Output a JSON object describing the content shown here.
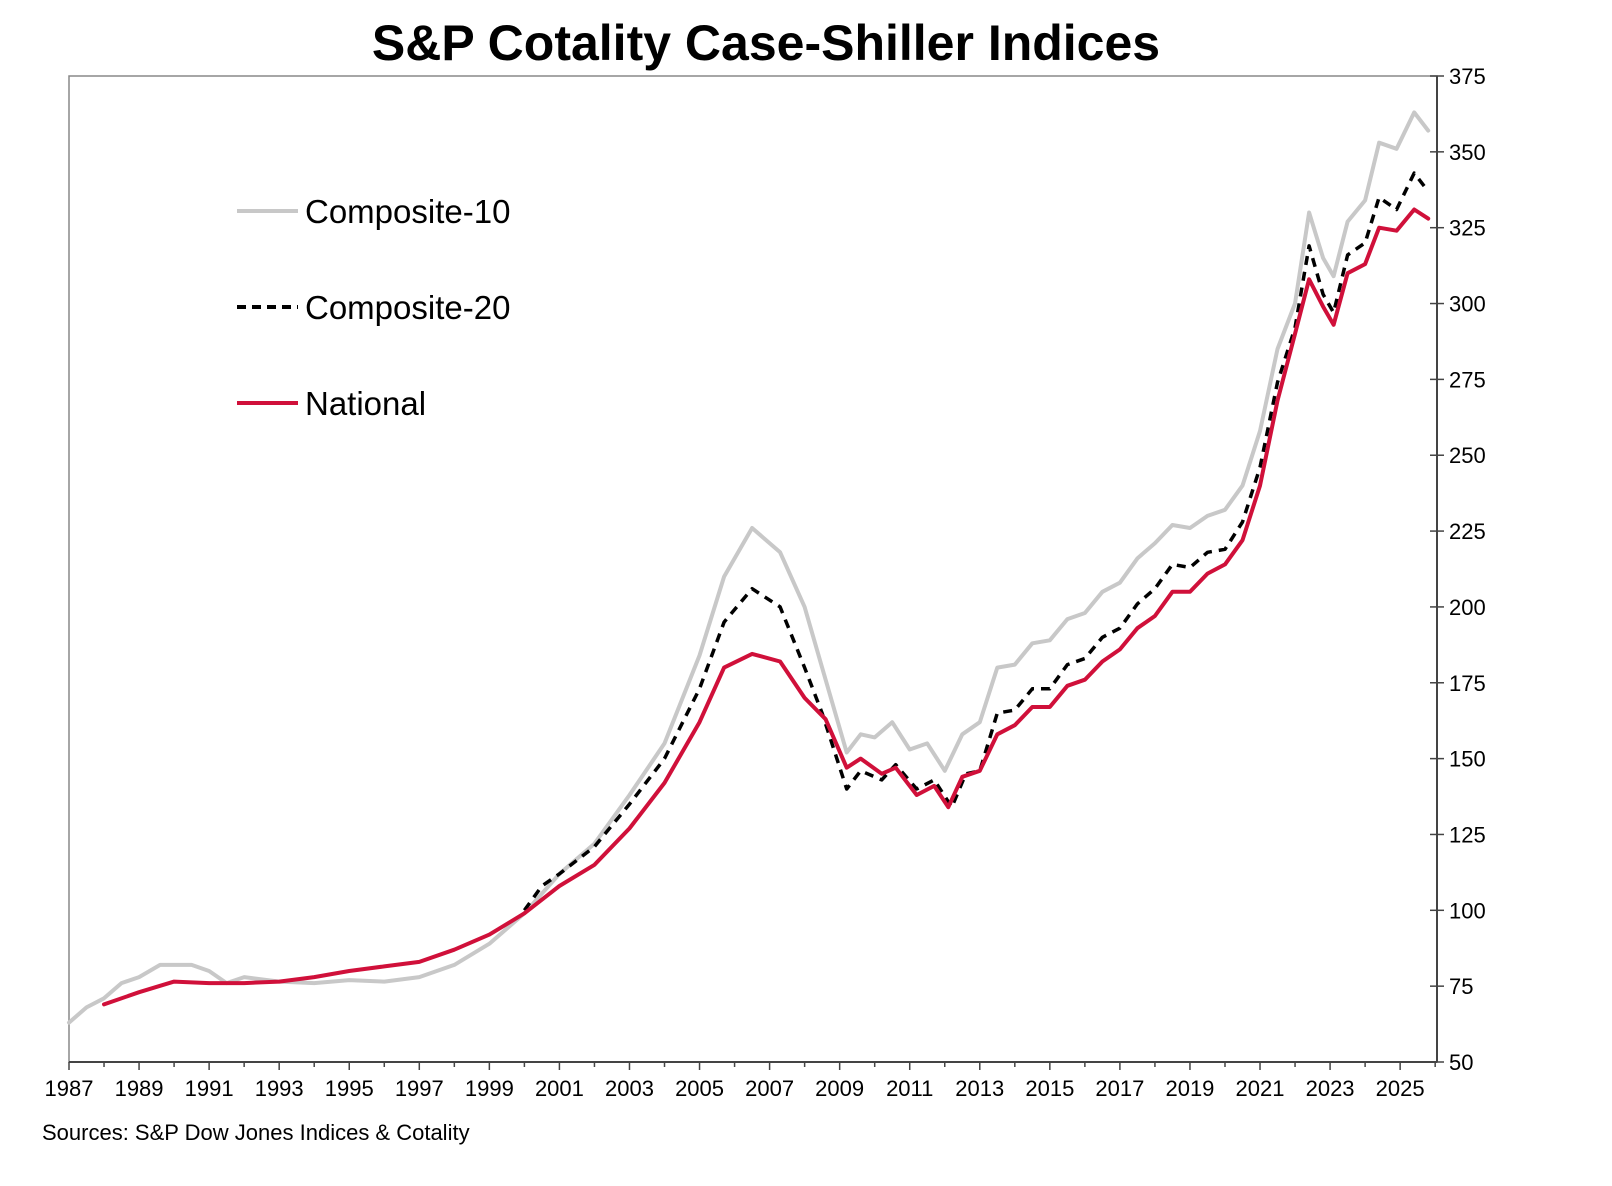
{
  "chart_data": {
    "type": "line",
    "title": "S&P Cotality Case-Shiller Indices",
    "source": "Sources: S&P Dow Jones Indices & Cotality",
    "xlabel": "",
    "ylabel": "",
    "xlim": [
      1987,
      2026.1
    ],
    "ylim": [
      50,
      375
    ],
    "x_ticks": [
      "1987",
      "1989",
      "1991",
      "1993",
      "1995",
      "1997",
      "1999",
      "2001",
      "2003",
      "2005",
      "2007",
      "2009",
      "2011",
      "2013",
      "2015",
      "2017",
      "2019",
      "2021",
      "2023",
      "2025"
    ],
    "y_ticks": [
      "50",
      "75",
      "100",
      "125",
      "150",
      "175",
      "200",
      "225",
      "250",
      "275",
      "300",
      "325",
      "350",
      "375"
    ],
    "y_axis_side": "right",
    "grid": false,
    "legend_position": "top-left",
    "series": [
      {
        "name": "Composite-10",
        "color": "#c8c8c8",
        "style": "solid",
        "points": [
          [
            1987,
            63
          ],
          [
            1987.5,
            68
          ],
          [
            1988,
            71
          ],
          [
            1988.5,
            76
          ],
          [
            1989,
            78
          ],
          [
            1989.6,
            82
          ],
          [
            1990.5,
            82
          ],
          [
            1991,
            80
          ],
          [
            1991.5,
            76
          ],
          [
            1992,
            78
          ],
          [
            1993,
            76.5
          ],
          [
            1994,
            76
          ],
          [
            1995,
            77
          ],
          [
            1996,
            76.5
          ],
          [
            1997,
            78
          ],
          [
            1998,
            82
          ],
          [
            1999,
            89
          ],
          [
            2000,
            99
          ],
          [
            2001,
            112
          ],
          [
            2002,
            122
          ],
          [
            2003,
            138
          ],
          [
            2004,
            155
          ],
          [
            2005,
            184
          ],
          [
            2005.7,
            210
          ],
          [
            2006.5,
            226
          ],
          [
            2007.3,
            218
          ],
          [
            2008,
            200
          ],
          [
            2008.5,
            180
          ],
          [
            2009.2,
            152
          ],
          [
            2009.6,
            158
          ],
          [
            2010,
            157
          ],
          [
            2010.5,
            162
          ],
          [
            2011,
            153
          ],
          [
            2011.5,
            155
          ],
          [
            2012,
            146
          ],
          [
            2012.5,
            158
          ],
          [
            2013,
            162
          ],
          [
            2013.5,
            180
          ],
          [
            2014,
            181
          ],
          [
            2014.5,
            188
          ],
          [
            2015,
            189
          ],
          [
            2015.5,
            196
          ],
          [
            2016,
            198
          ],
          [
            2016.5,
            205
          ],
          [
            2017,
            208
          ],
          [
            2017.5,
            216
          ],
          [
            2018,
            221
          ],
          [
            2018.5,
            227
          ],
          [
            2019,
            226
          ],
          [
            2019.5,
            230
          ],
          [
            2020,
            232
          ],
          [
            2020.5,
            240
          ],
          [
            2021,
            258
          ],
          [
            2021.5,
            285
          ],
          [
            2022,
            300
          ],
          [
            2022.4,
            330
          ],
          [
            2022.8,
            315
          ],
          [
            2023.1,
            309
          ],
          [
            2023.5,
            327
          ],
          [
            2024,
            334
          ],
          [
            2024.4,
            353
          ],
          [
            2024.9,
            351
          ],
          [
            2025.4,
            363
          ],
          [
            2025.8,
            357
          ]
        ]
      },
      {
        "name": "Composite-20",
        "color": "#000000",
        "style": "dashed",
        "points": [
          [
            2000,
            100
          ],
          [
            2000.5,
            108
          ],
          [
            2001,
            112
          ],
          [
            2002,
            121
          ],
          [
            2003,
            135
          ],
          [
            2004,
            150
          ],
          [
            2005,
            173
          ],
          [
            2005.7,
            195
          ],
          [
            2006.5,
            206
          ],
          [
            2007.3,
            200
          ],
          [
            2008,
            180
          ],
          [
            2008.5,
            165
          ],
          [
            2009.2,
            140
          ],
          [
            2009.6,
            146
          ],
          [
            2010.2,
            143
          ],
          [
            2010.6,
            148
          ],
          [
            2011.2,
            140
          ],
          [
            2011.7,
            143
          ],
          [
            2012.2,
            134
          ],
          [
            2012.6,
            145
          ],
          [
            2013,
            146
          ],
          [
            2013.5,
            165
          ],
          [
            2014,
            166
          ],
          [
            2014.5,
            173
          ],
          [
            2015,
            173
          ],
          [
            2015.5,
            181
          ],
          [
            2016,
            183
          ],
          [
            2016.5,
            190
          ],
          [
            2017,
            193
          ],
          [
            2017.5,
            201
          ],
          [
            2018,
            206
          ],
          [
            2018.5,
            214
          ],
          [
            2019,
            213
          ],
          [
            2019.5,
            218
          ],
          [
            2020,
            219
          ],
          [
            2020.5,
            228
          ],
          [
            2021,
            246
          ],
          [
            2021.5,
            274
          ],
          [
            2022,
            292
          ],
          [
            2022.4,
            319
          ],
          [
            2022.8,
            303
          ],
          [
            2023.1,
            297
          ],
          [
            2023.5,
            316
          ],
          [
            2024,
            320
          ],
          [
            2024.4,
            335
          ],
          [
            2024.9,
            331
          ],
          [
            2025.4,
            343
          ],
          [
            2025.8,
            337
          ]
        ]
      },
      {
        "name": "National",
        "color": "#d0103a",
        "style": "solid",
        "points": [
          [
            1988,
            69
          ],
          [
            1989,
            73
          ],
          [
            1990,
            76.5
          ],
          [
            1991,
            76
          ],
          [
            1992,
            76
          ],
          [
            1993,
            76.5
          ],
          [
            1994,
            78
          ],
          [
            1995,
            80
          ],
          [
            1996,
            81.5
          ],
          [
            1997,
            83
          ],
          [
            1998,
            87
          ],
          [
            1999,
            92
          ],
          [
            2000,
            99
          ],
          [
            2001,
            108
          ],
          [
            2002,
            115
          ],
          [
            2003,
            127
          ],
          [
            2004,
            142
          ],
          [
            2005,
            162
          ],
          [
            2005.7,
            180
          ],
          [
            2006.5,
            184.5
          ],
          [
            2007.3,
            182
          ],
          [
            2008,
            170
          ],
          [
            2008.6,
            163
          ],
          [
            2009.2,
            147
          ],
          [
            2009.6,
            150
          ],
          [
            2010.2,
            145
          ],
          [
            2010.6,
            147
          ],
          [
            2011.2,
            138
          ],
          [
            2011.7,
            141
          ],
          [
            2012.1,
            134
          ],
          [
            2012.5,
            144
          ],
          [
            2013,
            146
          ],
          [
            2013.5,
            158
          ],
          [
            2014,
            161
          ],
          [
            2014.5,
            167
          ],
          [
            2015,
            167
          ],
          [
            2015.5,
            174
          ],
          [
            2016,
            176
          ],
          [
            2016.5,
            182
          ],
          [
            2017,
            186
          ],
          [
            2017.5,
            193
          ],
          [
            2018,
            197
          ],
          [
            2018.5,
            205
          ],
          [
            2019,
            205
          ],
          [
            2019.5,
            211
          ],
          [
            2020,
            214
          ],
          [
            2020.5,
            222
          ],
          [
            2021,
            240
          ],
          [
            2021.5,
            268
          ],
          [
            2022,
            290
          ],
          [
            2022.4,
            308
          ],
          [
            2022.8,
            299
          ],
          [
            2023.1,
            293
          ],
          [
            2023.5,
            310
          ],
          [
            2024,
            313
          ],
          [
            2024.4,
            325
          ],
          [
            2024.9,
            324
          ],
          [
            2025.4,
            331
          ],
          [
            2025.8,
            328
          ]
        ]
      }
    ]
  }
}
